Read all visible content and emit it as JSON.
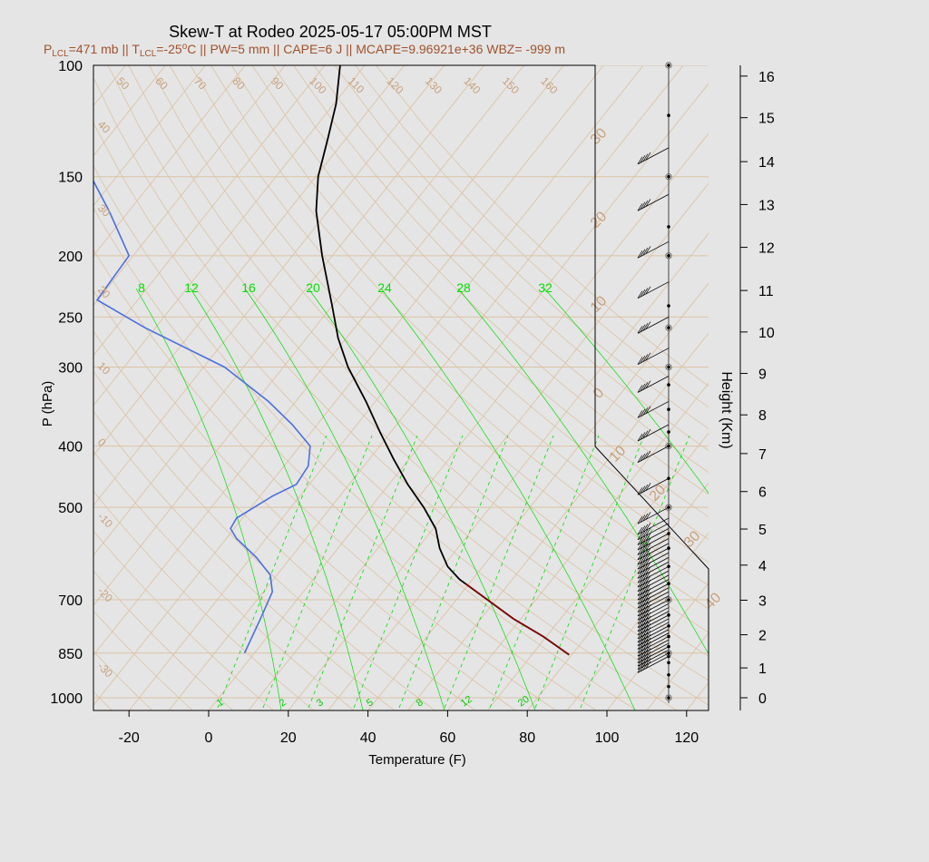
{
  "title": "Skew-T at Rodeo 2025-05-17 05:00PM MST",
  "subtitle_parts": {
    "p_lcl_sym": "P",
    "p_lcl_sub": "LCL",
    "p_lcl_val": "=471 mb || ",
    "t_lcl_sym": "T",
    "t_lcl_sub": "LCL",
    "t_lcl_val": "=-25",
    "deg_sup": "o",
    "rest": "C || PW=5 mm || CAPE=6 J || MCAPE=9.96921e+36 WBZ= -999 m"
  },
  "colors": {
    "background": "#e5e5e5",
    "isotherm": "#dcc3a5",
    "isotherm_label": "#c8a07a",
    "dew_point_line": "#4a6fe0",
    "temperature_line": "#000000",
    "parcel_line": "#8b0000",
    "mixing_ratio": "#00dd00",
    "subtitle": "#a0522d"
  },
  "chart_data": {
    "type": "skew-t",
    "xlabel": "Temperature (F)",
    "ylabel": "P (hPa)",
    "y2label": "Height (Km)",
    "x_ticks": [
      "-20",
      "0",
      "20",
      "40",
      "60",
      "80",
      "100",
      "120"
    ],
    "x_tick_values": [
      -20,
      0,
      20,
      40,
      60,
      80,
      100,
      120
    ],
    "xlim": [
      -28,
      125
    ],
    "pressure_ticks": [
      "100",
      "150",
      "200",
      "250",
      "300",
      "400",
      "500",
      "700",
      "850",
      "1000"
    ],
    "pressure_tick_values": [
      100,
      150,
      200,
      250,
      300,
      400,
      500,
      700,
      850,
      1000
    ],
    "pressure_range": [
      100,
      1050
    ],
    "height_ticks": [
      "0",
      "1",
      "2",
      "3",
      "4",
      "5",
      "6",
      "7",
      "8",
      "9",
      "10",
      "11",
      "12",
      "13",
      "14",
      "15",
      "16"
    ],
    "height_tick_pressures": [
      1000,
      897,
      795,
      701,
      617,
      541,
      472,
      411,
      357,
      307,
      264,
      227,
      194,
      166,
      142,
      121,
      104
    ],
    "isotherm_labels_top": [
      "50",
      "60",
      "70",
      "80",
      "90",
      "100",
      "110",
      "120",
      "130",
      "140",
      "150",
      "160"
    ],
    "isotherm_labels_left": [
      "40",
      "30",
      "20",
      "10",
      "0",
      "-10",
      "-20",
      "-30"
    ],
    "isotherm_labels_right": [
      "30",
      "20",
      "10",
      "0",
      "10",
      "20",
      "30",
      "40"
    ],
    "mixing_ratio_labels_top": [
      "8",
      "12",
      "16",
      "20",
      "24",
      "28",
      "32"
    ],
    "mixing_ratio_labels_bottom": [
      "1",
      "2",
      "3",
      "5",
      "8",
      "12",
      "20"
    ],
    "temperature_profile": [
      {
        "p": 855,
        "t": 90.5
      },
      {
        "p": 800,
        "t": 84
      },
      {
        "p": 750,
        "t": 76.5
      },
      {
        "p": 700,
        "t": 70
      },
      {
        "p": 650,
        "t": 63
      },
      {
        "p": 620,
        "t": 60
      },
      {
        "p": 580,
        "t": 58
      },
      {
        "p": 540,
        "t": 57
      },
      {
        "p": 500,
        "t": 54
      },
      {
        "p": 460,
        "t": 50
      },
      {
        "p": 420,
        "t": 46.5
      },
      {
        "p": 380,
        "t": 43
      },
      {
        "p": 340,
        "t": 39.5
      },
      {
        "p": 300,
        "t": 35
      },
      {
        "p": 270,
        "t": 32.5
      },
      {
        "p": 240,
        "t": 31
      },
      {
        "p": 200,
        "t": 28.5
      },
      {
        "p": 170,
        "t": 27
      },
      {
        "p": 150,
        "t": 27.5
      },
      {
        "p": 130,
        "t": 30
      },
      {
        "p": 115,
        "t": 32
      },
      {
        "p": 100,
        "t": 33
      }
    ],
    "dew_point_profile": [
      {
        "p": 850,
        "t": 9
      },
      {
        "p": 750,
        "t": 13
      },
      {
        "p": 680,
        "t": 16
      },
      {
        "p": 640,
        "t": 15.5
      },
      {
        "p": 600,
        "t": 12
      },
      {
        "p": 560,
        "t": 7
      },
      {
        "p": 540,
        "t": 5.5
      },
      {
        "p": 520,
        "t": 7
      },
      {
        "p": 480,
        "t": 16
      },
      {
        "p": 460,
        "t": 22
      },
      {
        "p": 430,
        "t": 25
      },
      {
        "p": 400,
        "t": 25.5
      },
      {
        "p": 370,
        "t": 21
      },
      {
        "p": 340,
        "t": 15
      },
      {
        "p": 300,
        "t": 4
      },
      {
        "p": 260,
        "t": -16
      },
      {
        "p": 235,
        "t": -28
      },
      {
        "p": 200,
        "t": -20
      },
      {
        "p": 170,
        "t": -25
      },
      {
        "p": 140,
        "t": -32
      },
      {
        "p": 100,
        "t": -41
      }
    ],
    "parcel_profile": [
      {
        "p": 855,
        "t": 90.5
      },
      {
        "p": 800,
        "t": 84
      },
      {
        "p": 750,
        "t": 76.5
      },
      {
        "p": 700,
        "t": 70
      },
      {
        "p": 660,
        "t": 64.5
      }
    ],
    "wind_barb_pressures": [
      860,
      850,
      840,
      830,
      820,
      810,
      800,
      790,
      780,
      770,
      760,
      750,
      740,
      730,
      720,
      710,
      700,
      690,
      680,
      670,
      660,
      650,
      640,
      630,
      620,
      610,
      600,
      590,
      580,
      570,
      560,
      550,
      540,
      530,
      520,
      500,
      450,
      400,
      370,
      340,
      310,
      280,
      250,
      220,
      190,
      160,
      135
    ],
    "level_marker_pressures": [
      100,
      120,
      150,
      180,
      200,
      240,
      260,
      300,
      320,
      350,
      380,
      400,
      450,
      500,
      550,
      580,
      620,
      660,
      700,
      740,
      770,
      800,
      830,
      850,
      860,
      880,
      920,
      960,
      1000
    ],
    "level_circle_pressures": [
      100,
      150,
      200,
      260,
      300,
      400,
      500,
      700,
      850,
      1000
    ]
  }
}
